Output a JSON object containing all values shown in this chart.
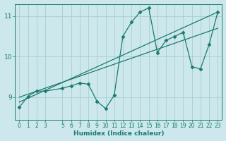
{
  "xlabel": "Humidex (Indice chaleur)",
  "ylabel": "",
  "bg_color": "#cce8ec",
  "grid_color": "#aacdd2",
  "line_color": "#1a7a6e",
  "xlim": [
    -0.5,
    23.5
  ],
  "ylim": [
    8.45,
    11.3
  ],
  "yticks": [
    9,
    10,
    11
  ],
  "xticks": [
    0,
    1,
    2,
    3,
    5,
    6,
    7,
    8,
    9,
    10,
    11,
    12,
    13,
    14,
    15,
    16,
    17,
    18,
    19,
    20,
    21,
    22,
    23
  ],
  "series1_x": [
    0,
    1,
    2,
    3,
    5,
    6,
    7,
    8,
    9,
    10,
    11,
    12,
    13,
    14,
    15,
    16,
    17,
    18,
    19,
    20,
    21,
    22,
    23
  ],
  "series1_y": [
    8.75,
    9.02,
    9.15,
    9.15,
    9.22,
    9.28,
    9.35,
    9.32,
    8.9,
    8.72,
    9.05,
    10.5,
    10.85,
    11.1,
    11.2,
    10.1,
    10.4,
    10.5,
    10.6,
    9.75,
    9.7,
    10.3,
    11.1
  ],
  "series2_x": [
    0,
    23
  ],
  "series2_y": [
    8.88,
    11.1
  ],
  "series3_x": [
    0,
    23
  ],
  "series3_y": [
    9.0,
    10.7
  ],
  "marker": "D",
  "markersize": 2.5
}
